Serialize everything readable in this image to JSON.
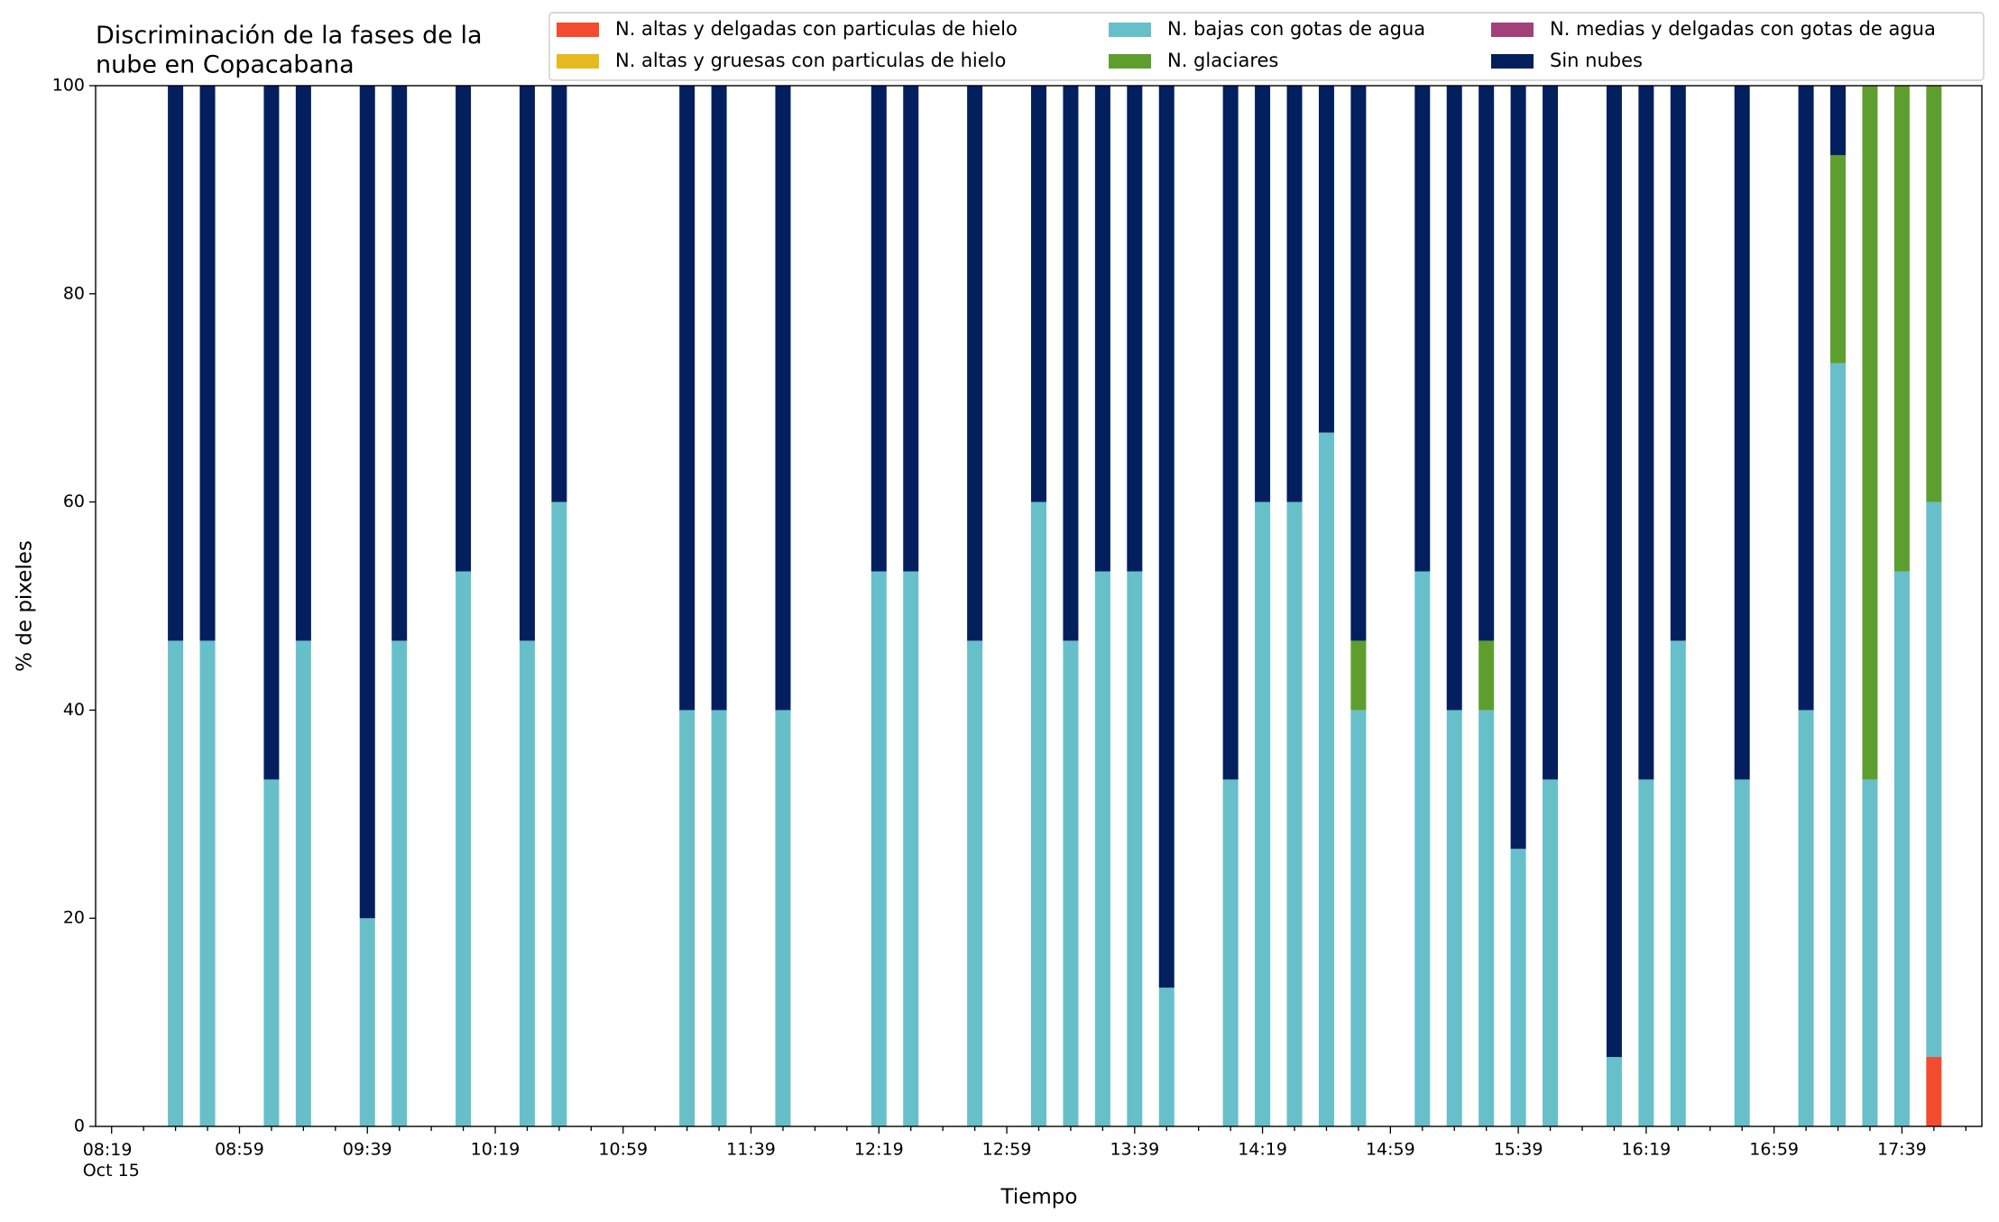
{
  "chart_data": {
    "type": "stacked_bar",
    "title": "Discriminación de la fases de la\nnube en Copacabana",
    "xlabel": "Tiempo",
    "ylabel": "% de pixeles",
    "x": [
      "08:39",
      "08:49",
      "09:09",
      "09:19",
      "09:39",
      "09:49",
      "10:09",
      "10:29",
      "10:39",
      "11:19",
      "11:29",
      "11:49",
      "12:19",
      "12:29",
      "12:49",
      "13:09",
      "13:19",
      "13:29",
      "13:39",
      "13:49",
      "14:09",
      "14:19",
      "14:29",
      "14:39",
      "14:49",
      "15:09",
      "15:19",
      "15:29",
      "15:39",
      "15:49",
      "16:09",
      "16:19",
      "16:29",
      "16:49",
      "17:09",
      "17:19",
      "17:29",
      "17:39",
      "17:49"
    ],
    "series": [
      {
        "name": "N. altas y delgadas con particulas de hielo",
        "color": "#f24b2e",
        "values": [
          0,
          0,
          0,
          0,
          0,
          0,
          0,
          0,
          0,
          0,
          0,
          0,
          0,
          0,
          0,
          0,
          0,
          0,
          0,
          0,
          0,
          0,
          0,
          0,
          0,
          0,
          0,
          0,
          0,
          0,
          0,
          0,
          0,
          0,
          0,
          0,
          0,
          0,
          6.67
        ]
      },
      {
        "name": "N. altas y gruesas con particulas de hielo",
        "color": "#e6b91e",
        "values": [
          0,
          0,
          0,
          0,
          0,
          0,
          0,
          0,
          0,
          0,
          0,
          0,
          0,
          0,
          0,
          0,
          0,
          0,
          0,
          0,
          0,
          0,
          0,
          0,
          0,
          0,
          0,
          0,
          0,
          0,
          0,
          0,
          0,
          0,
          0,
          0,
          0,
          0,
          0
        ]
      },
      {
        "name": "N. bajas con gotas de agua",
        "color": "#67bfca",
        "values": [
          46.67,
          46.67,
          33.33,
          46.67,
          20,
          46.67,
          53.33,
          46.67,
          60,
          40,
          40,
          40,
          53.33,
          53.33,
          46.67,
          60,
          46.67,
          53.33,
          53.33,
          13.33,
          33.33,
          60,
          60,
          66.67,
          40,
          53.33,
          40,
          40,
          26.67,
          33.33,
          6.67,
          33.33,
          46.67,
          33.33,
          40,
          73.33,
          33.33,
          53.33,
          53.33
        ]
      },
      {
        "name": "N. glaciares",
        "color": "#5e9e2e",
        "values": [
          0,
          0,
          0,
          0,
          0,
          0,
          0,
          0,
          0,
          0,
          0,
          0,
          0,
          0,
          0,
          0,
          0,
          0,
          0,
          0,
          0,
          0,
          0,
          0,
          6.67,
          0,
          0,
          6.67,
          0,
          0,
          0,
          0,
          0,
          0,
          0,
          20,
          66.67,
          46.67,
          40
        ]
      },
      {
        "name": "N. medias y delgadas con gotas de agua",
        "color": "#a3407a",
        "values": [
          0,
          0,
          0,
          0,
          0,
          0,
          0,
          0,
          0,
          0,
          0,
          0,
          0,
          0,
          0,
          0,
          0,
          0,
          0,
          0,
          0,
          0,
          0,
          0,
          0,
          0,
          0,
          0,
          0,
          0,
          0,
          0,
          0,
          0,
          0,
          0,
          0,
          0,
          0
        ]
      },
      {
        "name": "Sin nubes",
        "color": "#031f5e",
        "values": [
          53.33,
          53.33,
          66.67,
          53.33,
          80,
          53.33,
          46.67,
          53.33,
          40,
          60,
          60,
          60,
          46.67,
          46.67,
          53.33,
          40,
          53.33,
          46.67,
          46.67,
          86.67,
          66.67,
          40,
          40,
          33.33,
          53.33,
          46.67,
          60,
          53.33,
          73.33,
          66.67,
          93.33,
          66.67,
          53.33,
          66.67,
          60,
          6.67,
          0,
          0,
          0
        ]
      }
    ],
    "xlim": [
      "08:14",
      "18:04"
    ],
    "xticks": [
      {
        "value": "08:19",
        "label": "08:19\nOct 15"
      },
      "08:59",
      "09:39",
      "10:19",
      "10:59",
      "11:39",
      "12:19",
      "12:59",
      "13:39",
      "14:19",
      "14:59",
      "15:39",
      "16:19",
      "16:59",
      "17:39"
    ],
    "xminorticks": [
      "08:29",
      "08:39",
      "08:49",
      "09:09",
      "09:19",
      "09:29",
      "09:49",
      "09:59",
      "10:09",
      "10:29",
      "10:39",
      "10:49",
      "11:09",
      "11:19",
      "11:29",
      "11:49",
      "11:59",
      "12:09",
      "12:29",
      "12:39",
      "12:49",
      "13:09",
      "13:19",
      "13:29",
      "13:49",
      "13:59",
      "14:09",
      "14:29",
      "14:39",
      "14:49",
      "15:09",
      "15:19",
      "15:29",
      "15:49",
      "15:59",
      "16:09",
      "16:29",
      "16:39",
      "16:49",
      "17:09",
      "17:19",
      "17:29",
      "17:49",
      "17:59"
    ],
    "ylim": [
      0,
      100
    ],
    "yticks": [
      0,
      20,
      40,
      60,
      80,
      100
    ],
    "legend": "upper right"
  }
}
